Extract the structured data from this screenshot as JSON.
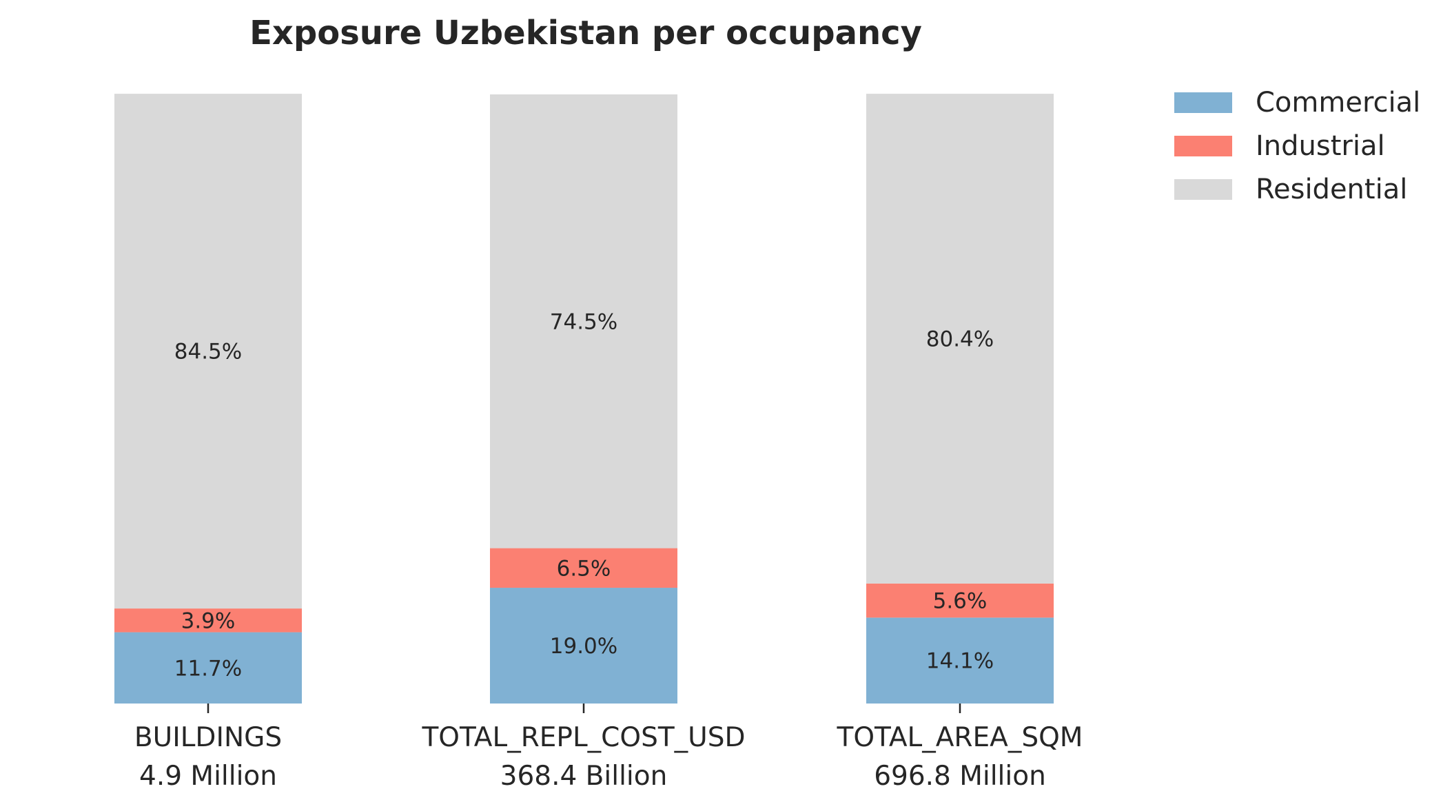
{
  "chart_data": {
    "type": "bar",
    "stacked": true,
    "title": "Exposure Uzbekistan per occupancy",
    "xlabel": "",
    "ylabel": "",
    "ylim": [
      0,
      100
    ],
    "grid": false,
    "legend_position": "top-right",
    "categories": [
      "BUILDINGS",
      "TOTAL_REPL_COST_USD",
      "TOTAL_AREA_SQM"
    ],
    "category_totals": [
      "4.9 Million",
      "368.4 Billion",
      "696.8 Million"
    ],
    "series": [
      {
        "name": "Commercial",
        "color": "#80b1d3",
        "values": [
          11.7,
          19.0,
          14.1
        ],
        "labels": [
          "11.7%",
          "19.0%",
          "14.1%"
        ]
      },
      {
        "name": "Industrial",
        "color": "#fb8072",
        "values": [
          3.9,
          6.5,
          5.6
        ],
        "labels": [
          "3.9%",
          "6.5%",
          "5.6%"
        ]
      },
      {
        "name": "Residential",
        "color": "#d9d9d9",
        "values": [
          84.5,
          74.5,
          80.4
        ],
        "labels": [
          "84.5%",
          "74.5%",
          "80.4%"
        ]
      }
    ]
  }
}
